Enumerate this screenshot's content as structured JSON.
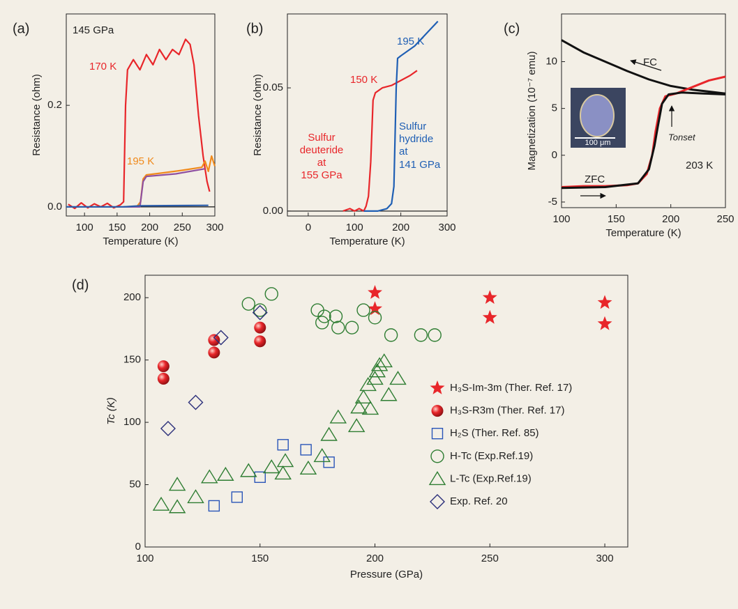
{
  "chart_data": [
    {
      "type": "line",
      "panel_label": "(a)",
      "xlabel": "Temperature (K)",
      "ylabel": "Resistance (ohm)",
      "xlim": [
        72,
        300
      ],
      "xticks": [
        100,
        150,
        200,
        250,
        300
      ],
      "ylim": [
        -0.018,
        0.38
      ],
      "yticks": [
        {
          "value": 0,
          "label": "0.0"
        },
        {
          "value": 0.2,
          "label": "0.2"
        }
      ],
      "zero_line": true,
      "annotations": [
        "145 GPa",
        "170 K",
        "195 K"
      ],
      "series": [
        {
          "color": "#e8262a",
          "x": [
            75,
            85,
            95,
            105,
            115,
            125,
            135,
            145,
            155,
            160,
            163,
            166,
            175,
            185,
            195,
            205,
            215,
            225,
            235,
            245,
            255,
            262,
            268,
            275,
            282,
            288,
            292
          ],
          "values": [
            0.005,
            -0.003,
            0.008,
            -0.002,
            0.006,
            0,
            0.007,
            -0.002,
            0.004,
            0.01,
            0.2,
            0.27,
            0.29,
            0.27,
            0.3,
            0.28,
            0.31,
            0.29,
            0.31,
            0.3,
            0.33,
            0.32,
            0.28,
            0.18,
            0.1,
            0.05,
            0.03
          ]
        },
        {
          "color": "#f08a1c",
          "x": [
            160,
            180,
            186,
            190,
            195,
            220,
            250,
            280,
            285,
            290,
            295,
            300
          ],
          "values": [
            0,
            0,
            0.01,
            0.055,
            0.063,
            0.067,
            0.072,
            0.078,
            0.09,
            0.07,
            0.1,
            0.08
          ]
        },
        {
          "color": "#8e4fa0",
          "x": [
            160,
            185,
            190,
            195,
            240,
            285
          ],
          "values": [
            0,
            0,
            0.05,
            0.06,
            0.065,
            0.075
          ]
        },
        {
          "color": "#2a5caa",
          "x": [
            72,
            160,
            185,
            290
          ],
          "values": [
            0,
            0,
            0.002,
            0.003
          ]
        }
      ]
    },
    {
      "type": "line",
      "panel_label": "(b)",
      "xlabel": "Temperature (K)",
      "ylabel": "Resistance (ohm)",
      "xlim": [
        -45,
        300
      ],
      "xticks": [
        0,
        100,
        200,
        300
      ],
      "ylim": [
        -0.002,
        0.08
      ],
      "yticks": [
        {
          "value": 0,
          "label": "0.00"
        },
        {
          "value": 0.05,
          "label": "0.05"
        }
      ],
      "zero_line": true,
      "annotations": [
        "195 K",
        "150 K",
        "Sulfur",
        "deuteride",
        "at",
        "155 GPa",
        "Sulfur",
        "hydride",
        "at",
        "141 GPa"
      ],
      "series": [
        {
          "color": "#e8262a",
          "x": [
            75,
            90,
            100,
            110,
            120,
            125,
            130,
            135,
            140,
            145,
            160,
            180,
            200,
            220,
            235
          ],
          "values": [
            0,
            0.001,
            0,
            0.001,
            0,
            0.002,
            0.006,
            0.02,
            0.045,
            0.048,
            0.05,
            0.051,
            0.053,
            0.055,
            0.057
          ]
        },
        {
          "color": "#1f5fb4",
          "x": [
            120,
            150,
            170,
            180,
            185,
            190,
            193,
            200,
            230,
            260,
            280
          ],
          "values": [
            0,
            0,
            0.001,
            0.003,
            0.01,
            0.05,
            0.062,
            0.063,
            0.067,
            0.073,
            0.077
          ]
        }
      ]
    },
    {
      "type": "line",
      "panel_label": "(c)",
      "xlabel": "Temperature (K)",
      "ylabel": "Magnetization (10⁻⁷ emu)",
      "xlim": [
        100,
        250
      ],
      "xticks": [
        100,
        150,
        200,
        250
      ],
      "ylim": [
        -5.6,
        15.1
      ],
      "yticks": [
        -5,
        0,
        5,
        10
      ],
      "annotations": [
        "FC",
        "ZFC",
        "Tonset",
        "203 K",
        "100 μm"
      ],
      "series": [
        {
          "color": "#111111",
          "x": [
            100,
            120,
            140,
            160,
            180,
            200,
            220,
            250
          ],
          "values": [
            12.3,
            11.0,
            10.0,
            9.0,
            8.1,
            7.4,
            7.0,
            6.6
          ]
        },
        {
          "color": "#e8262a",
          "x": [
            100,
            120,
            140,
            160,
            170,
            178,
            183,
            186,
            190,
            195,
            205,
            220,
            235,
            250
          ],
          "values": [
            -3.4,
            -3.3,
            -3.3,
            -3.2,
            -3.0,
            -2,
            0,
            2.5,
            5.0,
            6.3,
            6.6,
            7.3,
            8,
            8.4
          ]
        },
        {
          "color": "#111111",
          "x": [
            100,
            140,
            170,
            180,
            185,
            188,
            192,
            198,
            210,
            230,
            250
          ],
          "values": [
            -3.5,
            -3.4,
            -3.0,
            -1.5,
            1,
            3,
            5.5,
            6.5,
            6.7,
            6.6,
            6.5
          ]
        }
      ]
    },
    {
      "type": "scatter",
      "panel_label": "(d)",
      "xlabel": "Pressure (GPa)",
      "ylabel": "Tc (K)",
      "xlim": [
        100,
        310
      ],
      "xticks": [
        100,
        150,
        200,
        250,
        300
      ],
      "ylim": [
        0,
        218
      ],
      "yticks": [
        0,
        50,
        100,
        150,
        200
      ],
      "series": [
        {
          "name": "H₃S-Im-3m (Ther. Ref. 17)",
          "marker": "star",
          "color": "#e8262a",
          "x": [
            200,
            200,
            250,
            250,
            300,
            300
          ],
          "values": [
            204,
            191,
            200,
            184,
            196,
            179
          ]
        },
        {
          "name": "H₃S-R3m (Ther. Ref. 17)",
          "marker": "sphere",
          "color": "#e8262a",
          "x": [
            108,
            108,
            130,
            130,
            150,
            150
          ],
          "values": [
            145,
            135,
            166,
            156,
            176,
            165
          ]
        },
        {
          "name": "H₂S (Ther. Ref. 85)",
          "marker": "square",
          "color": "#2a55b8",
          "x": [
            130,
            140,
            150,
            160,
            170,
            180
          ],
          "values": [
            33,
            40,
            56,
            82,
            78,
            68
          ]
        },
        {
          "name": "H-Tc (Exp.Ref.19)",
          "marker": "circle",
          "color": "#2e7d32",
          "x": [
            145,
            150,
            155,
            175,
            177,
            178,
            183,
            184,
            190,
            195,
            200,
            207,
            220,
            226
          ],
          "values": [
            195,
            190,
            203,
            190,
            180,
            185,
            185,
            176,
            176,
            190,
            184,
            170,
            170,
            170
          ]
        },
        {
          "name": "L-Tc (Exp.Ref.19)",
          "marker": "triangle",
          "color": "#2e7d32",
          "x": [
            107,
            114,
            114,
            122,
            128,
            135,
            145,
            155,
            160,
            161,
            171,
            177,
            180,
            184,
            192,
            193,
            195,
            197,
            198,
            200,
            201,
            202,
            204,
            206,
            210
          ],
          "values": [
            34,
            32,
            50,
            40,
            56,
            58,
            61,
            64,
            59,
            69,
            63,
            73,
            90,
            104,
            97,
            112,
            120,
            130,
            111,
            135,
            141,
            146,
            149,
            122,
            135
          ]
        },
        {
          "name": "Exp. Ref. 20",
          "marker": "diamond",
          "color": "#2b2f7a",
          "x": [
            110,
            122,
            133,
            150
          ],
          "values": [
            95,
            116,
            168,
            188
          ]
        }
      ]
    }
  ]
}
